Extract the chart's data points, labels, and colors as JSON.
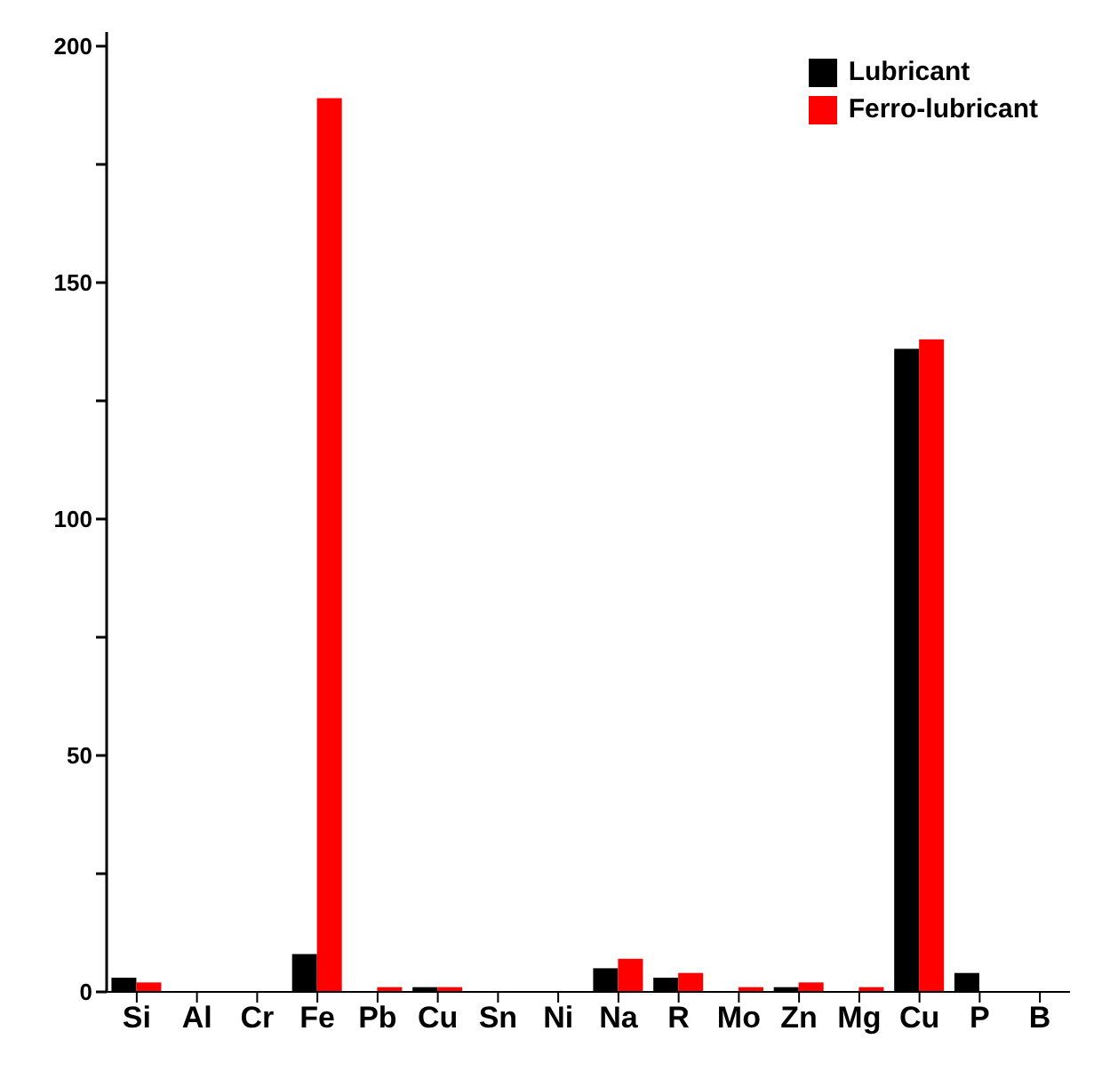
{
  "chart_data": {
    "type": "bar",
    "categories": [
      "Si",
      "Al",
      "Cr",
      "Fe",
      "Pb",
      "Cu",
      "Sn",
      "Ni",
      "Na",
      "R",
      "Mo",
      "Zn",
      "Mg",
      "Cu",
      "P",
      "B"
    ],
    "series": [
      {
        "name": "Lubricant",
        "color": "#000000",
        "values": [
          3,
          0,
          0,
          8,
          0,
          1,
          0,
          0,
          5,
          3,
          0,
          1,
          0,
          136,
          4,
          0
        ]
      },
      {
        "name": "Ferro-lubricant",
        "color": "#ff0000",
        "values": [
          2,
          0,
          0,
          189,
          1,
          1,
          0,
          0,
          7,
          4,
          1,
          2,
          1,
          138,
          0,
          0
        ]
      }
    ],
    "ylim": [
      0,
      203
    ],
    "yticks": [
      0,
      {
        "value": 25,
        "label": null
      },
      50,
      {
        "value": 75,
        "label": null
      },
      100,
      {
        "value": 125,
        "label": null
      },
      150,
      {
        "value": 175,
        "label": null
      },
      200
    ],
    "grid": false,
    "legend": "top right"
  }
}
